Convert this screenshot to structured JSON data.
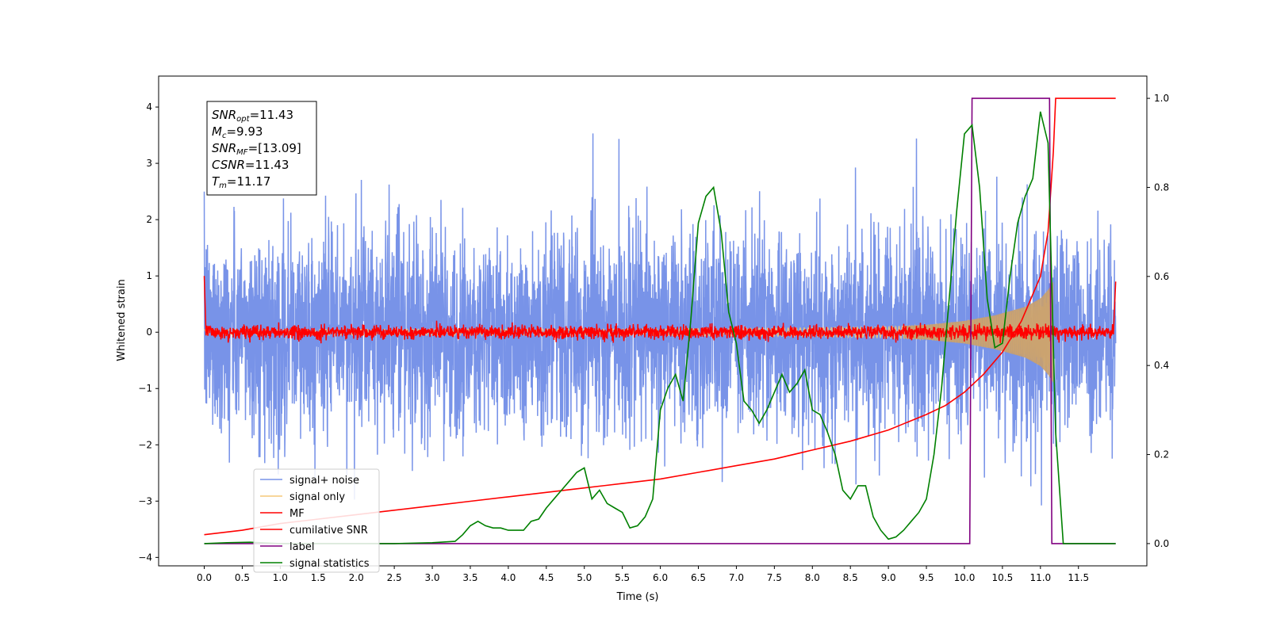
{
  "chart_data": {
    "type": "line",
    "title": "",
    "xlabel": "Time (s)",
    "ylabel": "Whitened strain",
    "y2label": "",
    "xlim": [
      -0.6,
      12.4
    ],
    "ylim": [
      -4.15,
      4.55
    ],
    "y2lim": [
      -0.05,
      1.05
    ],
    "x_ticks": [
      0.0,
      0.5,
      1.0,
      1.5,
      2.0,
      2.5,
      3.0,
      3.5,
      4.0,
      4.5,
      5.0,
      5.5,
      6.0,
      6.5,
      7.0,
      7.5,
      8.0,
      8.5,
      9.0,
      9.5,
      10.0,
      10.5,
      11.0,
      11.5
    ],
    "y_ticks": [
      -4,
      -3,
      -2,
      -1,
      0,
      1,
      2,
      3,
      4
    ],
    "y2_ticks": [
      0.0,
      0.2,
      0.4,
      0.6,
      0.8,
      1.0
    ],
    "grid": false,
    "legend_position": "lower-left",
    "annotation_box": {
      "lines": [
        {
          "base": "SNR",
          "sub": "opt",
          "rest": "=11.43"
        },
        {
          "base": "M",
          "sub": "c",
          "rest": "=9.93"
        },
        {
          "base": "SNR",
          "sub": "MF",
          "rest": "=[13.09]"
        },
        {
          "base": "CSNR",
          "sub": "",
          "rest": "=11.43"
        },
        {
          "base": "T",
          "sub": "m",
          "rest": "=11.17"
        }
      ]
    },
    "series": [
      {
        "name": "signal+ noise",
        "color": "#7893e8",
        "axis": "left",
        "kind": "noise",
        "description_stats": {
          "std": 0.9,
          "x_range": [
            0.0,
            11.99
          ]
        }
      },
      {
        "name": "signal only",
        "color": "#f5c878",
        "axis": "left",
        "kind": "chirp",
        "envelope_x": [
          0.0,
          6.0,
          8.0,
          9.0,
          9.5,
          10.0,
          10.4,
          10.8,
          11.0,
          11.1,
          11.17
        ],
        "envelope_y": [
          0.05,
          0.06,
          0.08,
          0.1,
          0.13,
          0.2,
          0.3,
          0.45,
          0.6,
          0.75,
          0.9
        ]
      },
      {
        "name": "MF",
        "color": "#ff0000",
        "axis": "left",
        "kind": "mf",
        "start_value": 1.0,
        "end_value": 0.9,
        "noise_std": 0.06
      },
      {
        "name": "cumilative SNR",
        "color": "#ff0000",
        "axis": "right",
        "kind": "line",
        "x": [
          0.0,
          0.5,
          1.0,
          1.5,
          2.0,
          2.5,
          3.0,
          3.5,
          4.0,
          4.5,
          5.0,
          5.5,
          6.0,
          6.5,
          7.0,
          7.5,
          8.0,
          8.5,
          9.0,
          9.5,
          9.75,
          10.0,
          10.25,
          10.5,
          10.75,
          11.0,
          11.1,
          11.17,
          11.2,
          11.5,
          11.99
        ],
        "y": [
          0.02,
          0.03,
          0.045,
          0.055,
          0.065,
          0.075,
          0.085,
          0.095,
          0.105,
          0.115,
          0.125,
          0.135,
          0.145,
          0.16,
          0.175,
          0.19,
          0.21,
          0.23,
          0.255,
          0.29,
          0.31,
          0.34,
          0.38,
          0.43,
          0.5,
          0.6,
          0.7,
          0.88,
          1.0,
          1.0,
          1.0
        ]
      },
      {
        "name": "label",
        "color": "#800080",
        "axis": "right",
        "kind": "line",
        "x": [
          0.0,
          10.07,
          10.1,
          11.12,
          11.15,
          11.99
        ],
        "y": [
          0.0,
          0.0,
          1.0,
          1.0,
          0.0,
          0.0
        ]
      },
      {
        "name": "signal statistics",
        "color": "#008000",
        "axis": "right",
        "kind": "line",
        "x": [
          0.0,
          0.3,
          0.6,
          1.0,
          1.5,
          2.0,
          2.5,
          3.0,
          3.3,
          3.4,
          3.5,
          3.6,
          3.7,
          3.8,
          3.9,
          4.0,
          4.2,
          4.3,
          4.4,
          4.5,
          4.6,
          4.7,
          4.8,
          4.9,
          5.0,
          5.1,
          5.2,
          5.3,
          5.4,
          5.5,
          5.6,
          5.7,
          5.8,
          5.9,
          6.0,
          6.1,
          6.2,
          6.3,
          6.4,
          6.5,
          6.6,
          6.7,
          6.8,
          6.9,
          7.0,
          7.1,
          7.2,
          7.3,
          7.4,
          7.5,
          7.6,
          7.7,
          7.8,
          7.9,
          8.0,
          8.1,
          8.2,
          8.3,
          8.4,
          8.5,
          8.6,
          8.7,
          8.8,
          8.9,
          9.0,
          9.1,
          9.2,
          9.3,
          9.4,
          9.5,
          9.6,
          9.7,
          9.8,
          9.9,
          10.0,
          10.1,
          10.2,
          10.3,
          10.4,
          10.5,
          10.6,
          10.7,
          10.8,
          10.9,
          11.0,
          11.1,
          11.2,
          11.3,
          11.5,
          11.99
        ],
        "y": [
          0.0,
          0.002,
          0.003,
          0.0,
          0.0,
          0.0,
          0.0,
          0.002,
          0.005,
          0.02,
          0.04,
          0.05,
          0.04,
          0.035,
          0.035,
          0.03,
          0.03,
          0.05,
          0.055,
          0.08,
          0.1,
          0.12,
          0.14,
          0.16,
          0.17,
          0.1,
          0.12,
          0.09,
          0.08,
          0.07,
          0.035,
          0.04,
          0.06,
          0.1,
          0.3,
          0.35,
          0.38,
          0.32,
          0.5,
          0.72,
          0.78,
          0.8,
          0.7,
          0.52,
          0.45,
          0.32,
          0.3,
          0.27,
          0.3,
          0.34,
          0.38,
          0.34,
          0.36,
          0.39,
          0.3,
          0.29,
          0.25,
          0.2,
          0.12,
          0.1,
          0.13,
          0.13,
          0.06,
          0.03,
          0.01,
          0.015,
          0.03,
          0.05,
          0.07,
          0.1,
          0.2,
          0.35,
          0.55,
          0.75,
          0.92,
          0.94,
          0.8,
          0.55,
          0.44,
          0.45,
          0.6,
          0.72,
          0.78,
          0.82,
          0.97,
          0.9,
          0.25,
          0.0,
          0.0,
          0.0
        ]
      }
    ]
  }
}
